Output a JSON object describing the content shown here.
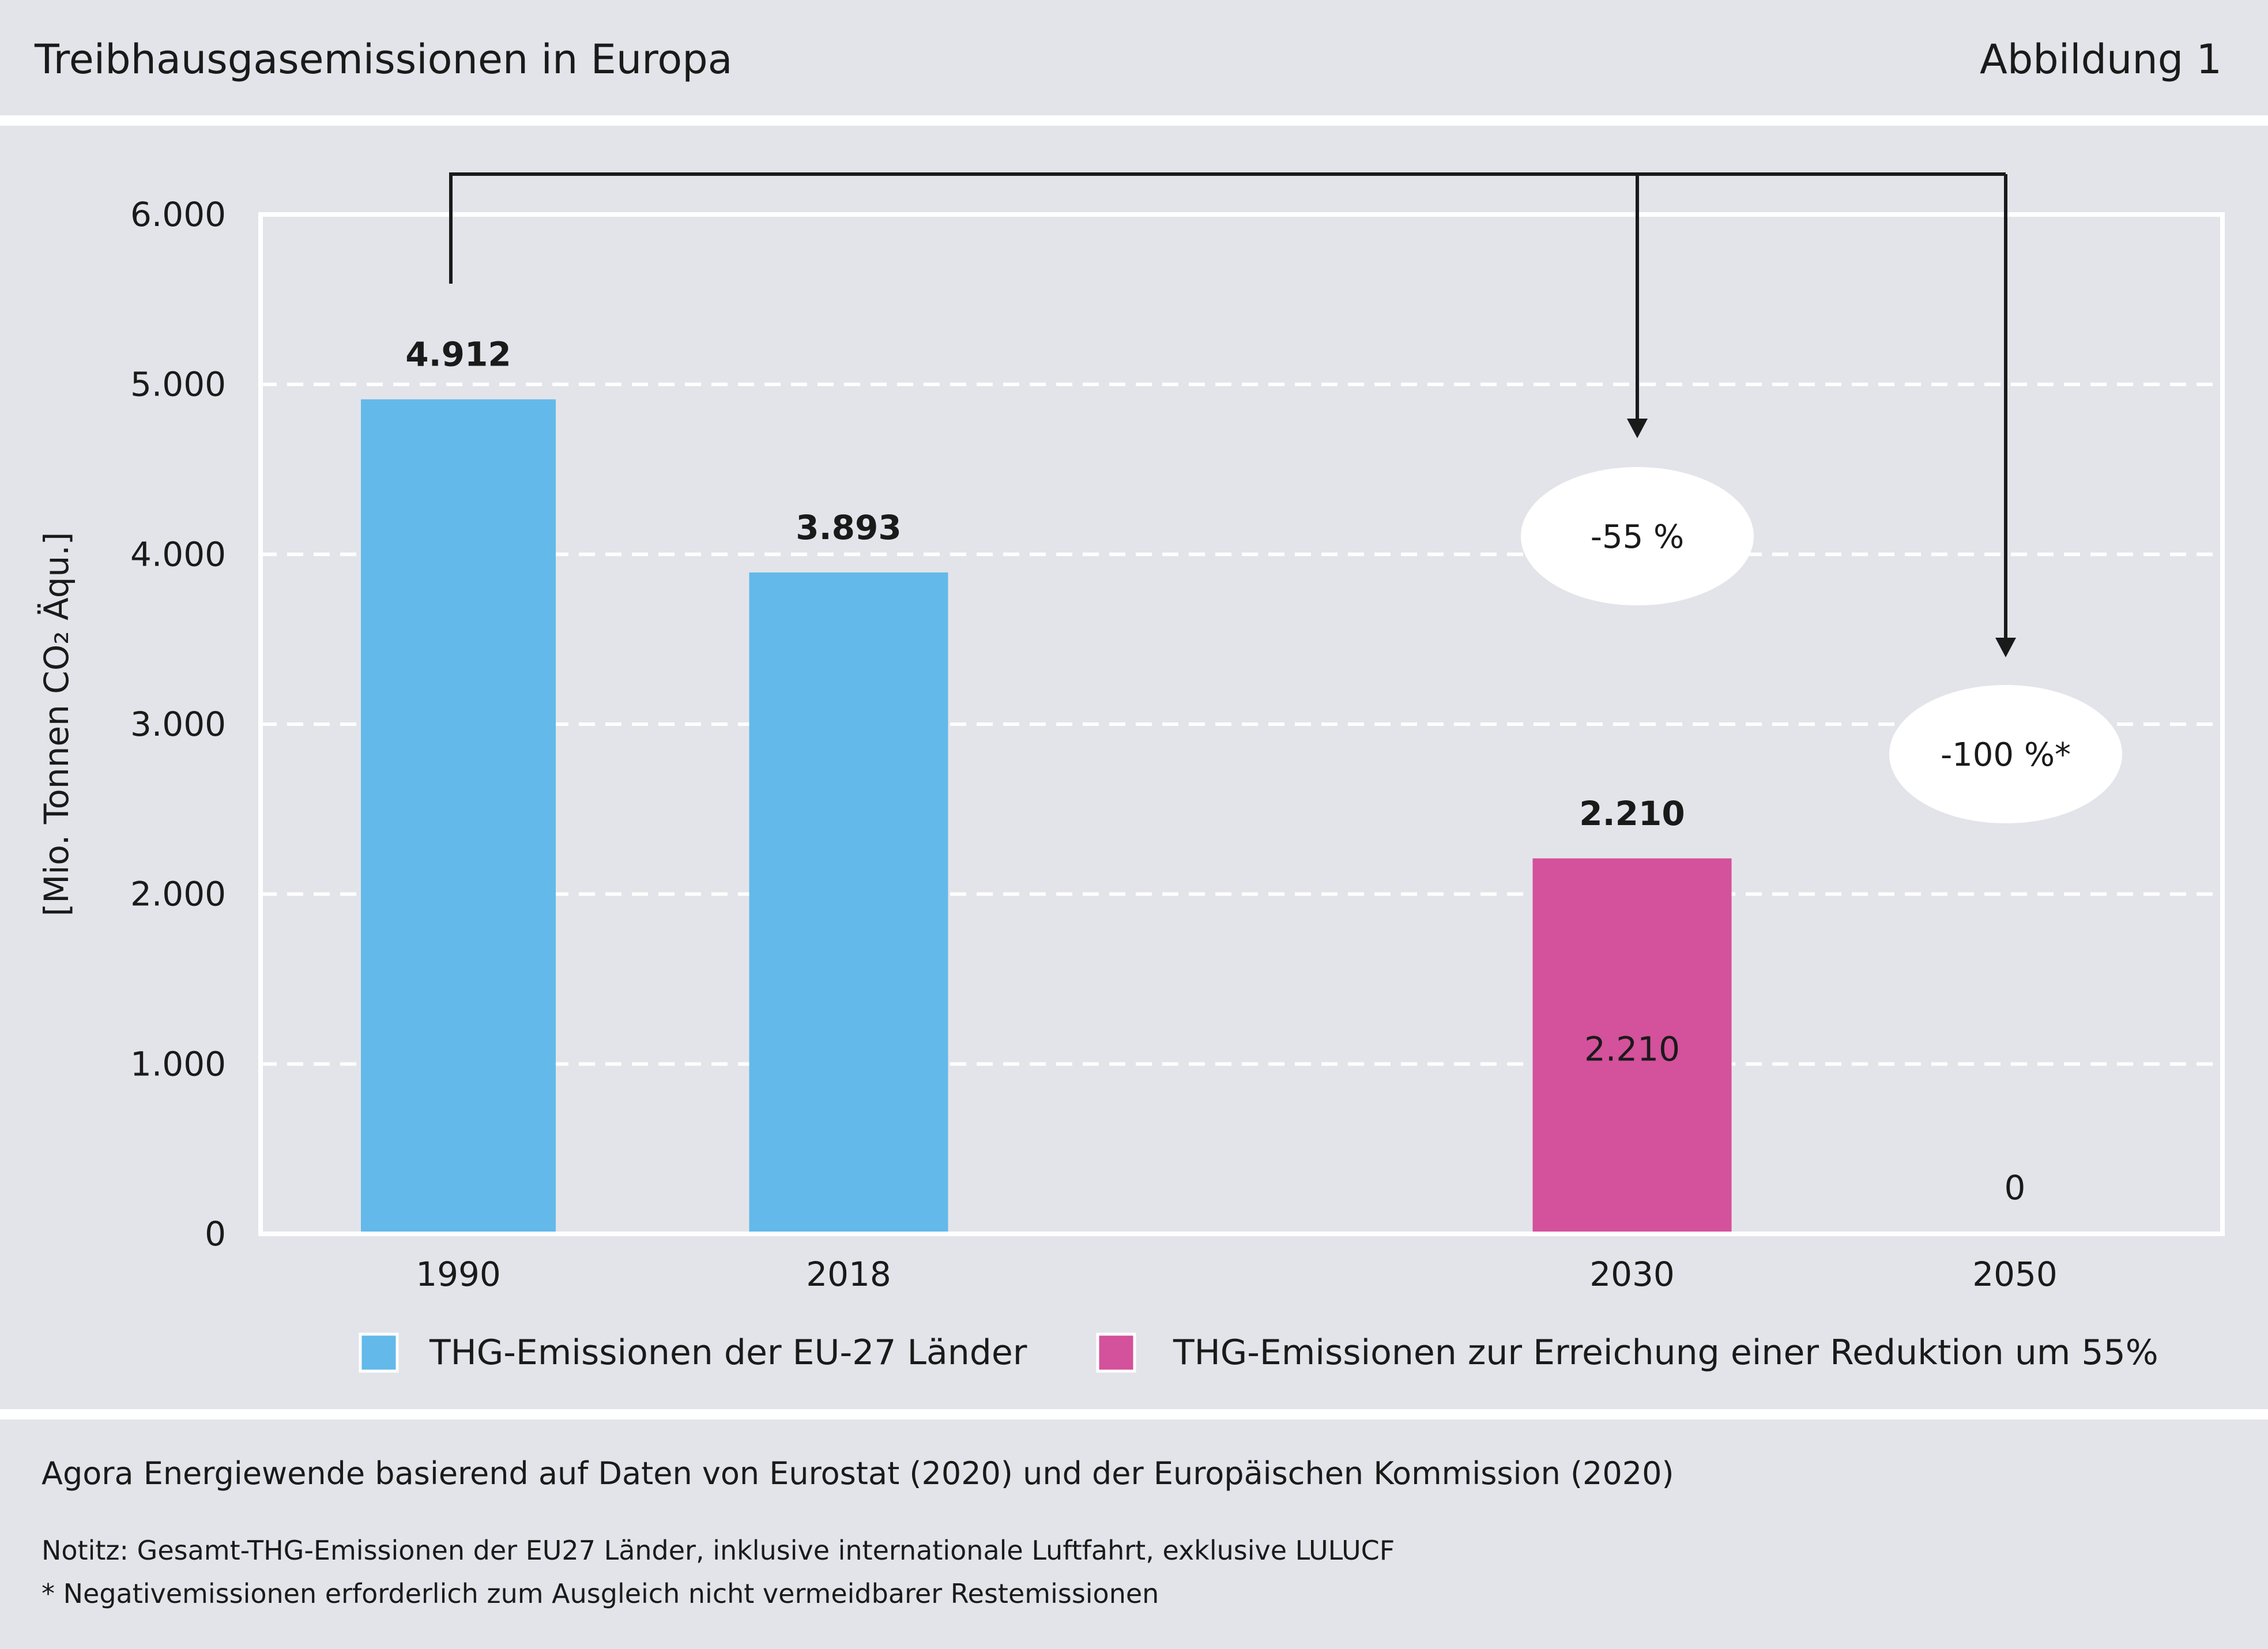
{
  "header": {
    "title": "Treibhausgasemissionen in Europa",
    "figure_label": "Abbildung 1"
  },
  "chart_data": {
    "type": "bar",
    "categories": [
      "1990",
      "2018",
      "2030",
      "2050"
    ],
    "series": [
      {
        "name": "THG-Emissionen der EU-27 Länder",
        "color": "#63b9e9",
        "values": [
          4912,
          3893,
          null,
          null
        ]
      },
      {
        "name": "THG-Emissionen zur Erreichung einer Reduktion um 55%",
        "color": "#d4519b",
        "values": [
          null,
          null,
          2210,
          0
        ]
      }
    ],
    "value_labels": [
      "4.912",
      "3.893",
      "2.210",
      "0"
    ],
    "inner_label": {
      "category": "2030",
      "text": "2.210"
    },
    "ylabel": "[Mio. Tonnen CO₂ Äqu.]",
    "ylim": [
      0,
      6000
    ],
    "yticks": [
      0,
      1000,
      2000,
      3000,
      4000,
      5000,
      6000
    ],
    "ytick_labels": [
      "0",
      "1.000",
      "2.000",
      "3.000",
      "4.000",
      "5.000",
      "6.000"
    ],
    "grid": "dashed horizontal",
    "legend": "bottom",
    "annotations": [
      {
        "from": "1990",
        "to": "2030",
        "text": "-55 %"
      },
      {
        "from": "1990",
        "to": "2050",
        "text": "-100 %*"
      }
    ]
  },
  "footer": {
    "source": "Agora Energiewende basierend auf Daten von Eurostat (2020) und der Europäischen Kommission (2020)",
    "note1": "Notitz: Gesamt-THG-Emissionen der EU27 Länder, inklusive internationale Luftfahrt, exklusive LULUCF",
    "note2": "* Negativemissionen erforderlich zum Ausgleich nicht vermeidbarer Restemissionen"
  }
}
